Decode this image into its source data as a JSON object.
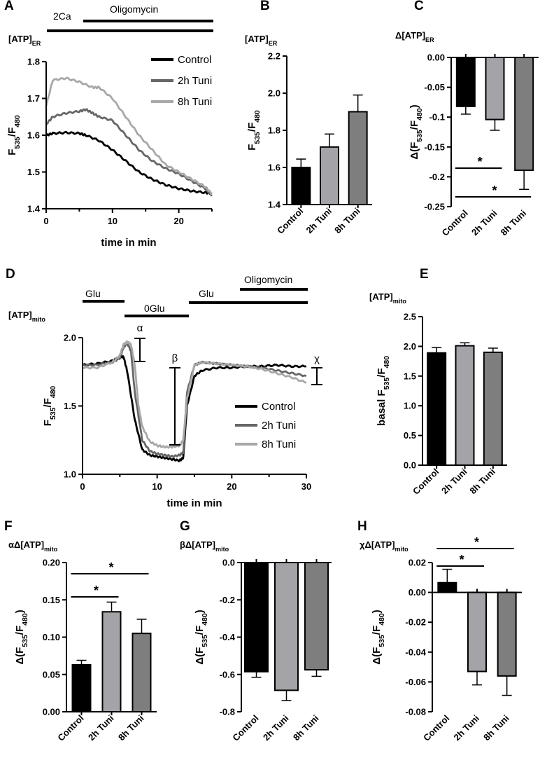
{
  "colors": {
    "control": "#000000",
    "tuni2": "#a3a3a8",
    "tuni8": "#7e7e7e",
    "trace2": "#666666",
    "trace8": "#a8a8a8"
  },
  "chart_data": [
    {
      "id": "A",
      "panel_label": "A",
      "type": "line",
      "title": "[ATP]",
      "title_sub": "ER",
      "xlabel": "time in min",
      "ylabel": "F",
      "ylabel_sub1": "535",
      "ylabel_mid": "/F",
      "ylabel_sub2": "480",
      "xlim": [
        0,
        25
      ],
      "ylim": [
        1.4,
        1.8
      ],
      "xticks": [
        "0",
        "10",
        "20"
      ],
      "yticks": [
        "1.4",
        "1.5",
        "1.6",
        "1.7",
        "1.8"
      ],
      "annotations": [
        "2Ca",
        "Oligomycin"
      ],
      "series": [
        {
          "name": "Control",
          "x": [
            0,
            1,
            3,
            5,
            6,
            8,
            10,
            12,
            14,
            16,
            18,
            20,
            22,
            24,
            25
          ],
          "y": [
            1.6,
            1.605,
            1.607,
            1.605,
            1.6,
            1.585,
            1.56,
            1.53,
            1.5,
            1.48,
            1.465,
            1.455,
            1.448,
            1.444,
            1.441
          ]
        },
        {
          "name": "2h Tuni",
          "x": [
            0,
            1,
            3,
            5,
            6,
            7,
            8,
            10,
            12,
            14,
            16,
            18,
            20,
            22,
            24,
            25
          ],
          "y": [
            1.63,
            1.65,
            1.66,
            1.665,
            1.67,
            1.66,
            1.65,
            1.64,
            1.6,
            1.56,
            1.53,
            1.51,
            1.495,
            1.475,
            1.455,
            1.435
          ]
        },
        {
          "name": "8h Tuni",
          "x": [
            0,
            1,
            3,
            5,
            7,
            8,
            10,
            12,
            14,
            16,
            18,
            20,
            22,
            24,
            25
          ],
          "y": [
            1.68,
            1.75,
            1.755,
            1.745,
            1.73,
            1.73,
            1.7,
            1.65,
            1.6,
            1.56,
            1.52,
            1.5,
            1.48,
            1.46,
            1.44
          ]
        }
      ]
    },
    {
      "id": "B",
      "panel_label": "B",
      "type": "bar",
      "title": "[ATP]",
      "title_sub": "ER",
      "ylabel": "F",
      "ylabel_sub1": "535",
      "ylabel_mid": "/F",
      "ylabel_sub2": "480",
      "categories": [
        "Control",
        "2h Tuni",
        "8h Tuni"
      ],
      "values": [
        1.6,
        1.71,
        1.9
      ],
      "errors": [
        0.045,
        0.07,
        0.09
      ],
      "ylim": [
        1.4,
        2.2
      ],
      "yticks": [
        "1.4",
        "1.6",
        "1.8",
        "2.0",
        "2.2"
      ]
    },
    {
      "id": "C",
      "panel_label": "C",
      "type": "bar",
      "title": "Δ[ATP]",
      "title_sub": "ER",
      "ylabel": "Δ(F",
      "ylabel_sub1": "535",
      "ylabel_mid": "/F",
      "ylabel_sub2": "480",
      "ylabel_end": ")",
      "categories": [
        "Control",
        "2h Tuni",
        "8h Tuni"
      ],
      "values": [
        -0.082,
        -0.104,
        -0.189
      ],
      "errors": [
        0.013,
        0.018,
        0.032
      ],
      "ylim": [
        -0.25,
        0.0
      ],
      "yticks": [
        "-0.25",
        "-0.2",
        "-0.15",
        "-0.1",
        "-0.05",
        "0.00"
      ],
      "significance": [
        {
          "from": 0,
          "to": 1,
          "label": "*"
        },
        {
          "from": 0,
          "to": 2,
          "label": "*"
        }
      ]
    },
    {
      "id": "D",
      "panel_label": "D",
      "type": "line",
      "title": "[ATP]",
      "title_sub": "mito",
      "xlabel": "time in min",
      "ylabel": "F",
      "ylabel_sub1": "535",
      "ylabel_mid": "/F",
      "ylabel_sub2": "480",
      "xlim": [
        0,
        30
      ],
      "ylim": [
        1.0,
        2.0
      ],
      "xticks": [
        "0",
        "10",
        "20",
        "30"
      ],
      "yticks": [
        "1.0",
        "1.5",
        "2.0"
      ],
      "annotations": [
        "Glu",
        "0Glu",
        "Glu",
        "Oligomycin",
        "α",
        "β",
        "χ"
      ],
      "series": [
        {
          "name": "Control",
          "x": [
            0,
            2,
            4,
            5,
            5.5,
            6,
            7,
            8,
            9,
            10,
            11,
            12,
            13,
            13.5,
            14,
            15,
            16,
            18,
            20,
            22,
            24,
            26,
            28,
            30
          ],
          "y": [
            1.8,
            1.81,
            1.83,
            1.86,
            1.86,
            1.75,
            1.4,
            1.18,
            1.14,
            1.13,
            1.12,
            1.11,
            1.1,
            1.12,
            1.5,
            1.72,
            1.76,
            1.78,
            1.78,
            1.79,
            1.79,
            1.8,
            1.79,
            1.79
          ]
        },
        {
          "name": "2h Tuni",
          "x": [
            0,
            2,
            4,
            5,
            5.5,
            6,
            6.5,
            7,
            8,
            9,
            10,
            11,
            12,
            13,
            13.5,
            14,
            15,
            16,
            18,
            20,
            22,
            24,
            26,
            28,
            30
          ],
          "y": [
            1.8,
            1.8,
            1.82,
            1.85,
            1.93,
            1.96,
            1.9,
            1.6,
            1.25,
            1.17,
            1.15,
            1.14,
            1.13,
            1.14,
            1.16,
            1.6,
            1.8,
            1.82,
            1.81,
            1.8,
            1.79,
            1.78,
            1.76,
            1.74,
            1.72
          ]
        },
        {
          "name": "8h Tuni",
          "x": [
            0,
            2,
            4,
            5,
            5.5,
            6,
            6.5,
            7,
            7.5,
            8,
            9,
            10,
            11,
            12,
            13,
            13.5,
            14,
            15,
            16,
            18,
            20,
            22,
            24,
            26,
            28,
            30
          ],
          "y": [
            1.78,
            1.78,
            1.82,
            1.87,
            1.95,
            1.97,
            1.95,
            1.8,
            1.5,
            1.35,
            1.24,
            1.21,
            1.2,
            1.2,
            1.21,
            1.25,
            1.55,
            1.8,
            1.82,
            1.81,
            1.8,
            1.79,
            1.77,
            1.74,
            1.71,
            1.67
          ]
        }
      ]
    },
    {
      "id": "E",
      "panel_label": "E",
      "type": "bar",
      "title": "[ATP]",
      "title_sub": "mito",
      "ylabel": "basal F",
      "ylabel_sub1": "535",
      "ylabel_mid": "/F",
      "ylabel_sub2": "480",
      "categories": [
        "Control",
        "2h Tuni",
        "8h Tuni"
      ],
      "values": [
        1.89,
        2.01,
        1.9
      ],
      "errors": [
        0.09,
        0.05,
        0.07
      ],
      "ylim": [
        0.0,
        2.5
      ],
      "yticks": [
        "0.0",
        "0.5",
        "1.0",
        "1.5",
        "2.0",
        "2.5"
      ]
    },
    {
      "id": "F",
      "panel_label": "F",
      "type": "bar",
      "title": "αΔ[ATP]",
      "title_sub": "mito",
      "ylabel": "Δ(F",
      "ylabel_sub1": "535",
      "ylabel_mid": "/F",
      "ylabel_sub2": "480",
      "ylabel_end": ")",
      "categories": [
        "Control",
        "2h Tuni",
        "8h Tuni"
      ],
      "values": [
        0.063,
        0.134,
        0.105
      ],
      "errors": [
        0.006,
        0.013,
        0.019
      ],
      "ylim": [
        0.0,
        0.2
      ],
      "yticks": [
        "0.00",
        "0.05",
        "0.10",
        "0.15",
        "0.20"
      ],
      "significance": [
        {
          "from": 0,
          "to": 1,
          "label": "*"
        },
        {
          "from": 0,
          "to": 2,
          "label": "*"
        }
      ]
    },
    {
      "id": "G",
      "panel_label": "G",
      "type": "bar",
      "title": "βΔ[ATP]",
      "title_sub": "mito",
      "ylabel": "Δ(F",
      "ylabel_sub1": "535",
      "ylabel_mid": "/F",
      "ylabel_sub2": "480",
      "ylabel_end": ")",
      "categories": [
        "Control",
        "2h Tuni",
        "8h Tuni"
      ],
      "values": [
        -0.585,
        -0.685,
        -0.575
      ],
      "errors": [
        0.03,
        0.055,
        0.035
      ],
      "ylim": [
        -0.8,
        0.0
      ],
      "yticks": [
        "-0.8",
        "-0.6",
        "-0.4",
        "-0.2",
        "0.0"
      ]
    },
    {
      "id": "H",
      "panel_label": "H",
      "type": "bar",
      "title": "χΔ[ATP]",
      "title_sub": "mito",
      "ylabel": "Δ(F",
      "ylabel_sub1": "535",
      "ylabel_mid": "/F",
      "ylabel_sub2": "480",
      "ylabel_end": ")",
      "categories": [
        "Control",
        "2h Tuni",
        "8h Tuni"
      ],
      "values": [
        0.0065,
        -0.053,
        -0.056
      ],
      "errors": [
        0.009,
        0.009,
        0.013
      ],
      "ylim": [
        -0.08,
        0.02
      ],
      "yticks": [
        "-0.08",
        "-0.06",
        "-0.04",
        "-0.02",
        "0.00",
        "0.02"
      ],
      "significance": [
        {
          "from": 0,
          "to": 1,
          "label": "*"
        },
        {
          "from": 0,
          "to": 2,
          "label": "*"
        }
      ]
    }
  ]
}
